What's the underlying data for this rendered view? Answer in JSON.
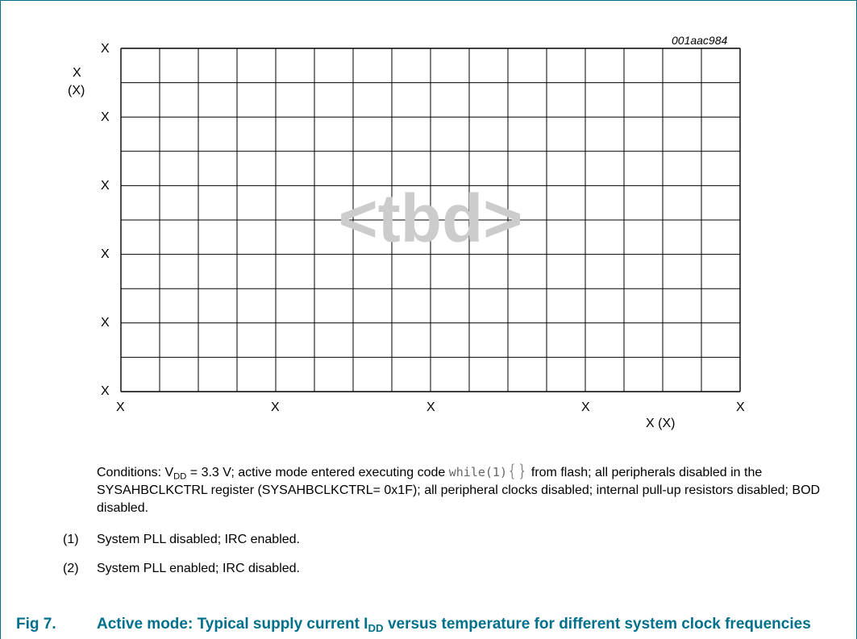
{
  "chart_data": {
    "type": "line",
    "figure_id": "001aac984",
    "placeholder_text": "<tbd>",
    "x_tick_labels": [
      "X",
      "X",
      "X",
      "X",
      "X"
    ],
    "y_tick_labels": [
      "X",
      "X",
      "X",
      "X",
      "X",
      "X"
    ],
    "x_axis_label": "X (X)",
    "y_axis_label": "X",
    "y_axis_unit": "(X)",
    "grid": true,
    "series": []
  },
  "conditions": {
    "prefix": "Conditions: V",
    "sub": "DD",
    "after_sub": " = 3.3 V; active mode entered executing code ",
    "code": "while(1)",
    "braces": "{}",
    "rest": " from flash; all peripherals disabled in the SYSAHBCLKCTRL register (SYSAHBCLKCTRL= 0x1F); all peripheral clocks disabled; internal pull-up resistors disabled; BOD disabled."
  },
  "notes": [
    {
      "num": "(1)",
      "text": "System PLL disabled; IRC enabled."
    },
    {
      "num": "(2)",
      "text": "System PLL enabled; IRC disabled."
    }
  ],
  "caption": {
    "number": "Fig 7.",
    "title_pre": "Active mode: Typical supply current I",
    "title_sub": "DD",
    "title_post": " versus temperature for different system clock frequencies"
  }
}
